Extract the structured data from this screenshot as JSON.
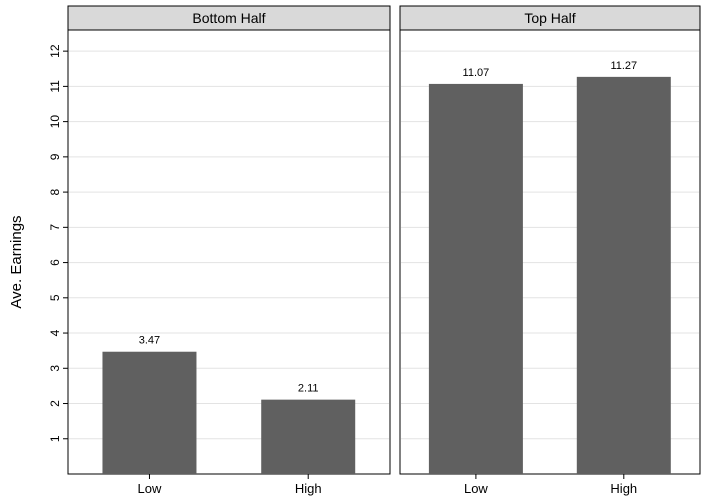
{
  "chart_data": {
    "type": "bar",
    "ylabel": "Ave. Earnings",
    "ylim": [
      0,
      12.6
    ],
    "yticks": [
      1,
      2,
      3,
      4,
      5,
      6,
      7,
      8,
      9,
      10,
      11,
      12
    ],
    "grid": true,
    "bar_color": "#606060",
    "categories": [
      "Low",
      "High"
    ],
    "panels": [
      {
        "title": "Bottom Half",
        "values": [
          3.47,
          2.11
        ],
        "value_labels": [
          "3.47",
          "2.11"
        ]
      },
      {
        "title": "Top Half",
        "values": [
          11.07,
          11.27
        ],
        "value_labels": [
          "11.07",
          "11.27"
        ]
      }
    ]
  }
}
